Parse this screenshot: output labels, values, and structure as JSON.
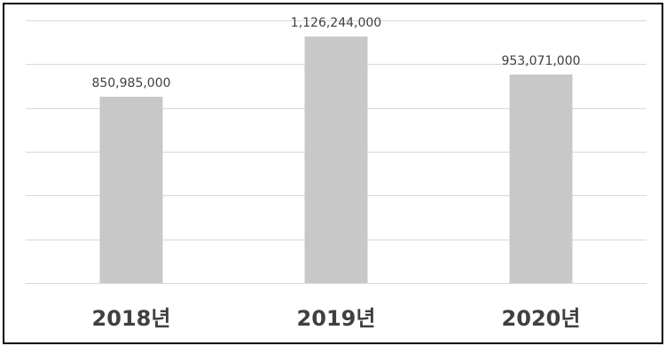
{
  "chart_data": {
    "type": "bar",
    "categories": [
      "2018년",
      "2019년",
      "2020년"
    ],
    "values": [
      850985000,
      1126244000,
      953071000
    ],
    "data_labels": [
      "850,985,000",
      "1,126,244,000",
      "953,071,000"
    ],
    "title": "",
    "xlabel": "",
    "ylabel": "",
    "ylim": [
      0,
      1200000000
    ],
    "grid": true,
    "legend": "none",
    "bar_color": "#c8c8c8",
    "gridline_color": "#d9d9d9",
    "text_color": "#404040"
  }
}
